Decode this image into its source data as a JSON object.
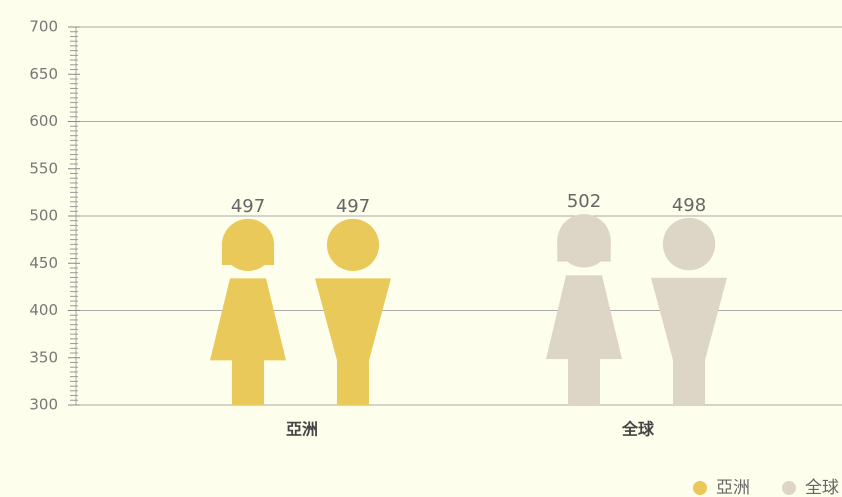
{
  "chart_data": {
    "type": "pictogram",
    "categories": [
      "亞洲",
      "全球"
    ],
    "series": [
      {
        "name": "亞洲",
        "color": "#e8c95a",
        "values": [
          497,
          497
        ]
      },
      {
        "name": "全球",
        "color": "#ddd5c5",
        "values": [
          502,
          498
        ]
      }
    ],
    "ylim": [
      300,
      700
    ],
    "yticks": [
      300,
      350,
      400,
      450,
      500,
      550,
      600,
      650,
      700
    ],
    "grid": true,
    "legend": "bottom-right"
  }
}
